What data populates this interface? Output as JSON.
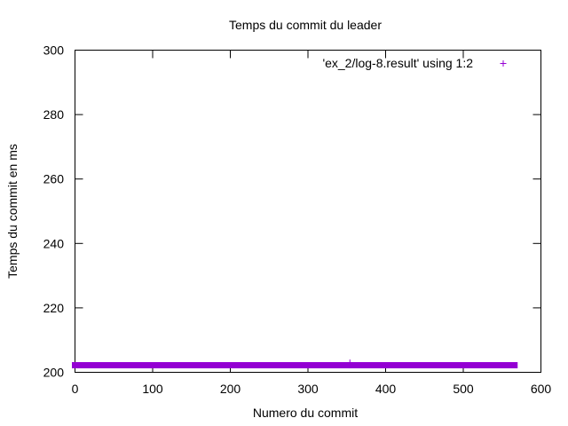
{
  "chart_data": {
    "type": "scatter",
    "title": "Temps du commit du leader",
    "xlabel": "Numero du commit",
    "ylabel": "Temps du commit en ms",
    "xlim": [
      0,
      600
    ],
    "ylim": [
      200,
      300
    ],
    "x_ticks": [
      0,
      100,
      200,
      300,
      400,
      500,
      600
    ],
    "y_ticks": [
      200,
      220,
      240,
      260,
      280,
      300
    ],
    "grid": false,
    "legend_position": "top-right",
    "series": [
      {
        "name": "'ex_2/log-8.result' using 1:2",
        "color": "#9400d3",
        "marker": "plus",
        "segments": [
          {
            "x_start": 0,
            "x_end": 352,
            "y": 202.2
          },
          {
            "x_start": 356,
            "x_end": 566,
            "y": 202.2
          }
        ],
        "outliers": [
          {
            "x": 354,
            "y": 203.0
          }
        ]
      }
    ]
  }
}
